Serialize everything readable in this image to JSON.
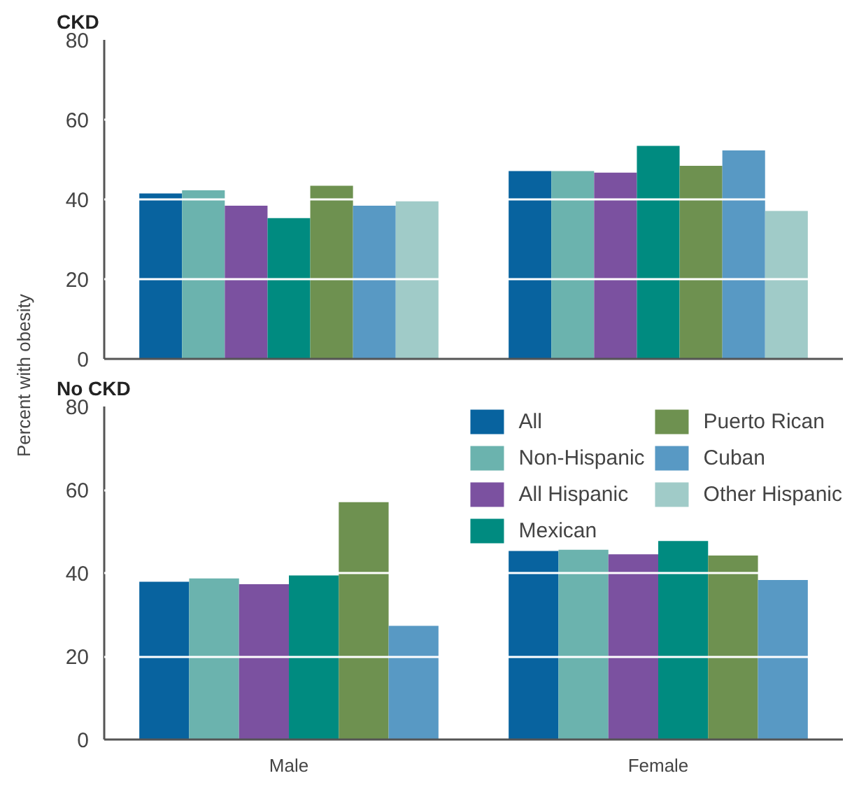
{
  "chart_data": [
    {
      "type": "bar",
      "title": "CKD",
      "ylabel": "Percent with obesity",
      "categories": [
        null,
        null
      ],
      "ylim": [
        0,
        80
      ],
      "yticks": [
        0,
        20,
        40,
        60,
        80
      ],
      "grid": "y",
      "tick_labels": "y",
      "legend": false,
      "series": [
        {
          "color": "#08639f",
          "values": [
            41.5,
            47.1
          ]
        },
        {
          "color": "#6bb3ae",
          "values": [
            42.3,
            47.1
          ]
        },
        {
          "color": "#7b51a0",
          "values": [
            38.4,
            46.7
          ]
        },
        {
          "color": "#008b80",
          "values": [
            35.3,
            53.4
          ]
        },
        {
          "color": "#6e9150",
          "values": [
            43.4,
            48.4
          ]
        },
        {
          "color": "#5899c4",
          "values": [
            38.4,
            52.3
          ]
        },
        {
          "color": "#a0cbc8",
          "values": [
            39.5,
            37.1
          ]
        }
      ]
    },
    {
      "type": "bar",
      "title": "No CKD",
      "categories": [
        "Male",
        "Female"
      ],
      "ylim": [
        0,
        80
      ],
      "yticks": [
        0,
        20,
        40,
        60,
        80
      ],
      "grid": "y",
      "legend": "top right",
      "series": [
        {
          "name": "All",
          "color": "#08639f",
          "values": [
            37.9,
            45.3
          ]
        },
        {
          "name": "Non-Hispanic",
          "color": "#6bb3ae",
          "values": [
            38.7,
            45.6
          ]
        },
        {
          "name": "All Hispanic",
          "color": "#7b51a0",
          "values": [
            37.3,
            44.5
          ]
        },
        {
          "name": "Mexican",
          "color": "#008b80",
          "values": [
            39.4,
            47.7
          ]
        },
        {
          "name": "Puerto Rican",
          "color": "#6e9150",
          "values": [
            57.0,
            44.2
          ]
        },
        {
          "name": "Cuban",
          "color": "#5899c4",
          "values": [
            27.3,
            38.3
          ]
        },
        {
          "name": "Other Hispanic",
          "color": "#a0cbc8",
          "values": [
            null,
            null
          ]
        }
      ]
    }
  ]
}
